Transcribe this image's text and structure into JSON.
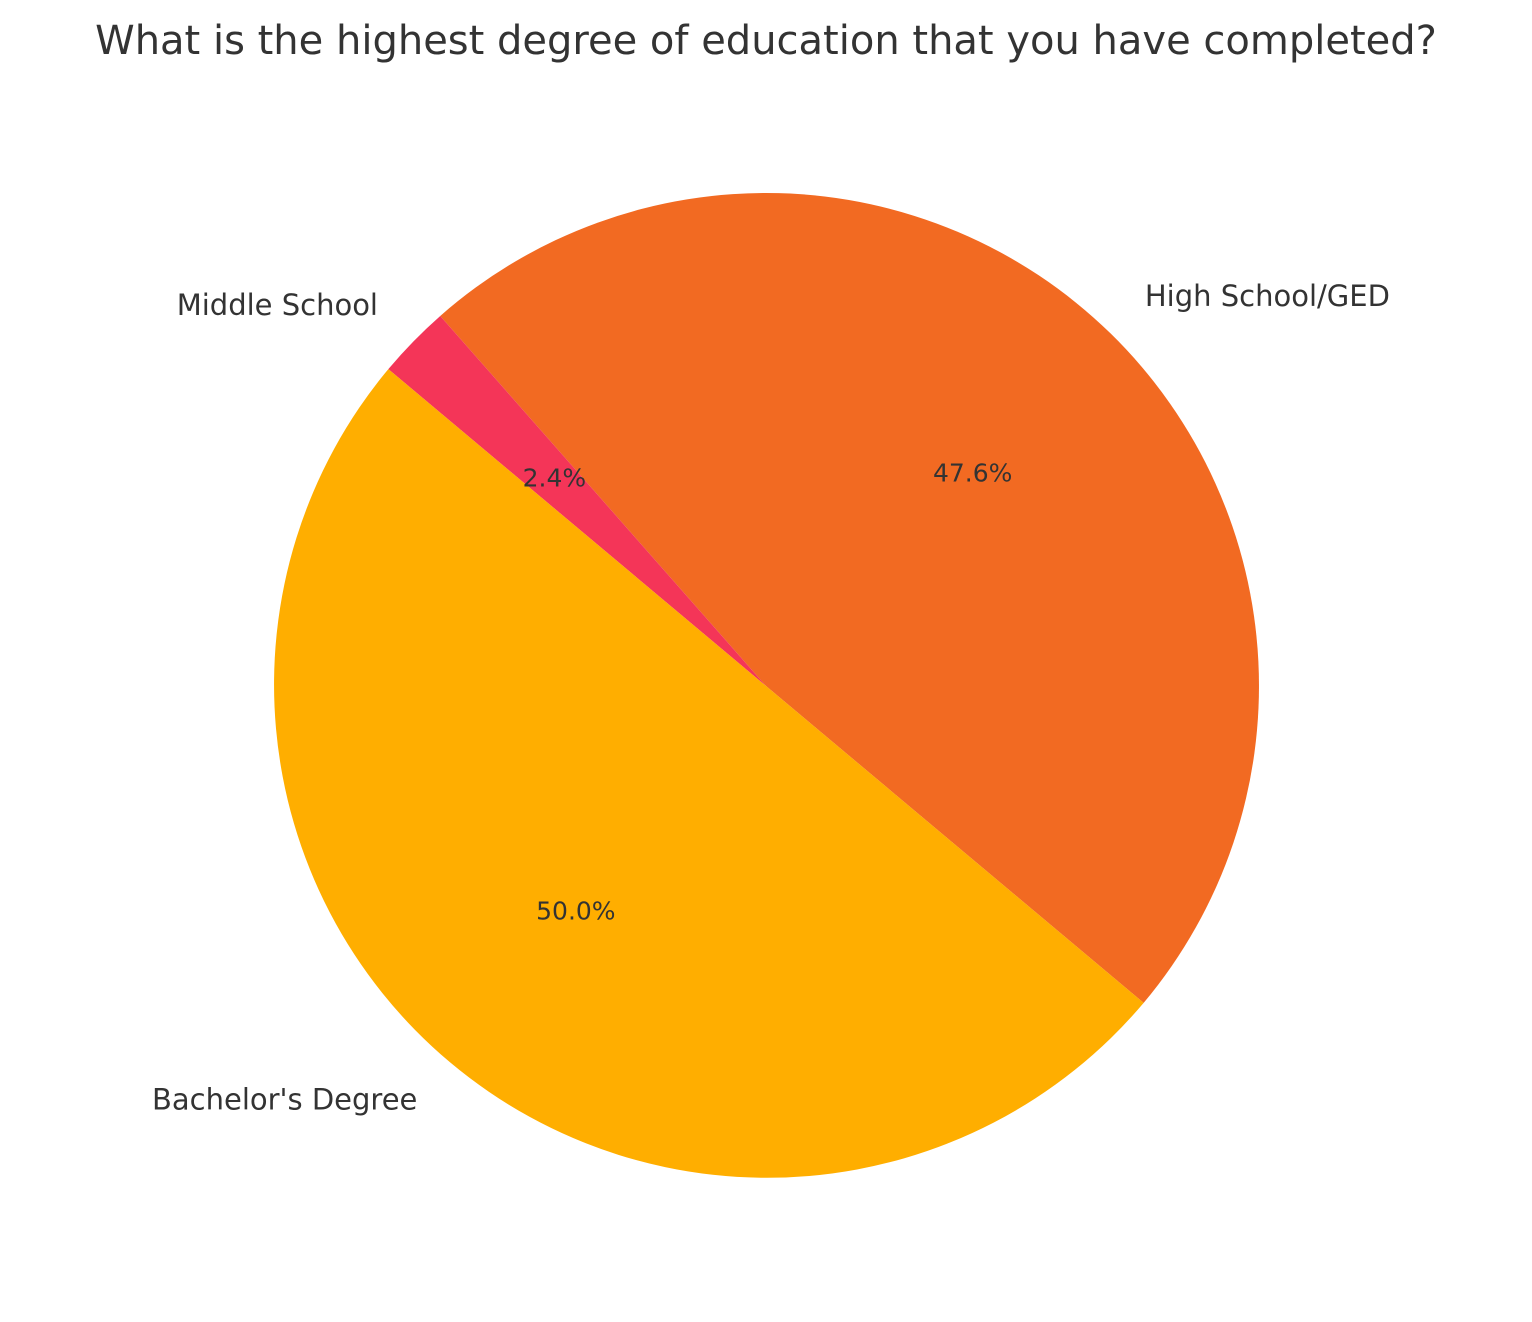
{
  "chart_data": {
    "type": "pie",
    "title": "What is the highest degree of education that you have completed?",
    "slices": [
      {
        "label": "High School/GED",
        "value": 47.6,
        "value_label": "47.6%",
        "color": "#F26A22"
      },
      {
        "label": "Middle School",
        "value": 2.4,
        "value_label": "2.4%",
        "color": "#F43558"
      },
      {
        "label": "Bachelor's Degree",
        "value": 50.0,
        "value_label": "50.0%",
        "color": "#FFAE00"
      }
    ],
    "start_angle_deg": -40,
    "direction": "counterclockwise",
    "legend": "none"
  }
}
